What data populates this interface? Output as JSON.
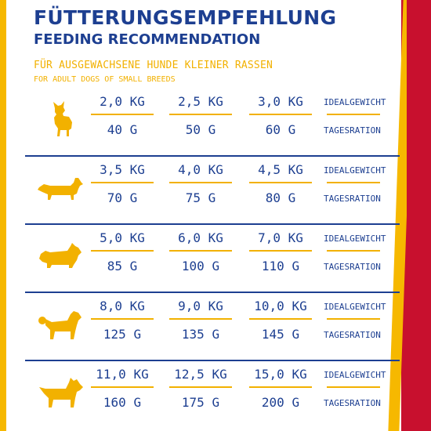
{
  "heading": {
    "title_de": "FÜTTERUNGSEMPFEHLUNG",
    "title_en": "FEEDING RECOMMENDATION",
    "subtitle_de": "FÜR AUSGEWACHSENE HUNDE KLEINER RASSEN",
    "subtitle_en": "FOR ADULT DOGS OF SMALL BREEDS"
  },
  "colors": {
    "blue": "#1d3f91",
    "yellow": "#f2b100",
    "red": "#c8102e"
  },
  "labels": {
    "ideal_weight": "IDEALGEWICHT",
    "daily_ration": "TAGESRATION"
  },
  "rows": [
    {
      "icon": "chihuahua-icon",
      "weights": [
        "2,0 KG",
        "2,5 KG",
        "3,0 KG"
      ],
      "rations": [
        "40 G",
        "50 G",
        "60 G"
      ]
    },
    {
      "icon": "dachshund-icon",
      "weights": [
        "3,5 KG",
        "4,0 KG",
        "4,5 KG"
      ],
      "rations": [
        "70 G",
        "75 G",
        "80 G"
      ]
    },
    {
      "icon": "scottish-terrier-icon",
      "weights": [
        "5,0 KG",
        "6,0 KG",
        "7,0 KG"
      ],
      "rations": [
        "85 G",
        "100 G",
        "110 G"
      ]
    },
    {
      "icon": "poodle-icon",
      "weights": [
        "8,0 KG",
        "9,0 KG",
        "10,0 KG"
      ],
      "rations": [
        "125 G",
        "135 G",
        "145 G"
      ]
    },
    {
      "icon": "terrier-icon",
      "weights": [
        "11,0 KG",
        "12,5 KG",
        "15,0 KG"
      ],
      "rations": [
        "160 G",
        "175 G",
        "200 G"
      ]
    }
  ]
}
